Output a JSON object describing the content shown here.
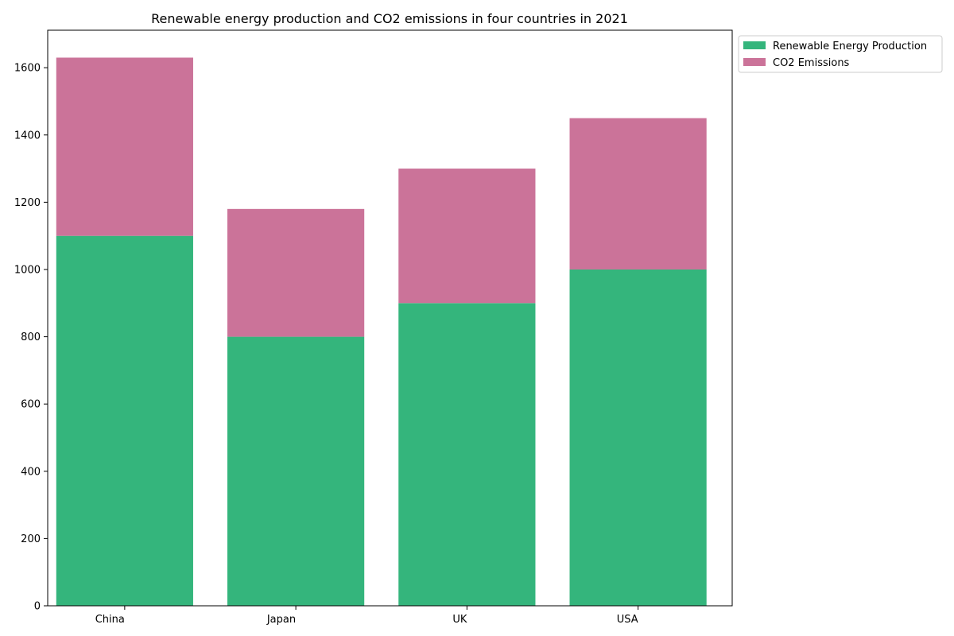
{
  "chart_data": {
    "type": "bar",
    "stacked": true,
    "title": "Renewable energy production and CO2 emissions in four countries in 2021",
    "xlabel": "",
    "ylabel": "",
    "categories": [
      "China",
      "Japan",
      "UK",
      "USA"
    ],
    "series": [
      {
        "name": "Renewable Energy Production",
        "values": [
          1100,
          800,
          900,
          1000
        ],
        "color": "#34b57c"
      },
      {
        "name": "CO2 Emissions",
        "values": [
          530,
          380,
          400,
          450
        ],
        "color": "#cb7399"
      }
    ],
    "ylim": [
      0,
      1711.5
    ],
    "yticks": [
      0,
      200,
      400,
      600,
      800,
      1000,
      1200,
      1400,
      1600
    ],
    "grid": false,
    "legend": "outside-top-right"
  }
}
